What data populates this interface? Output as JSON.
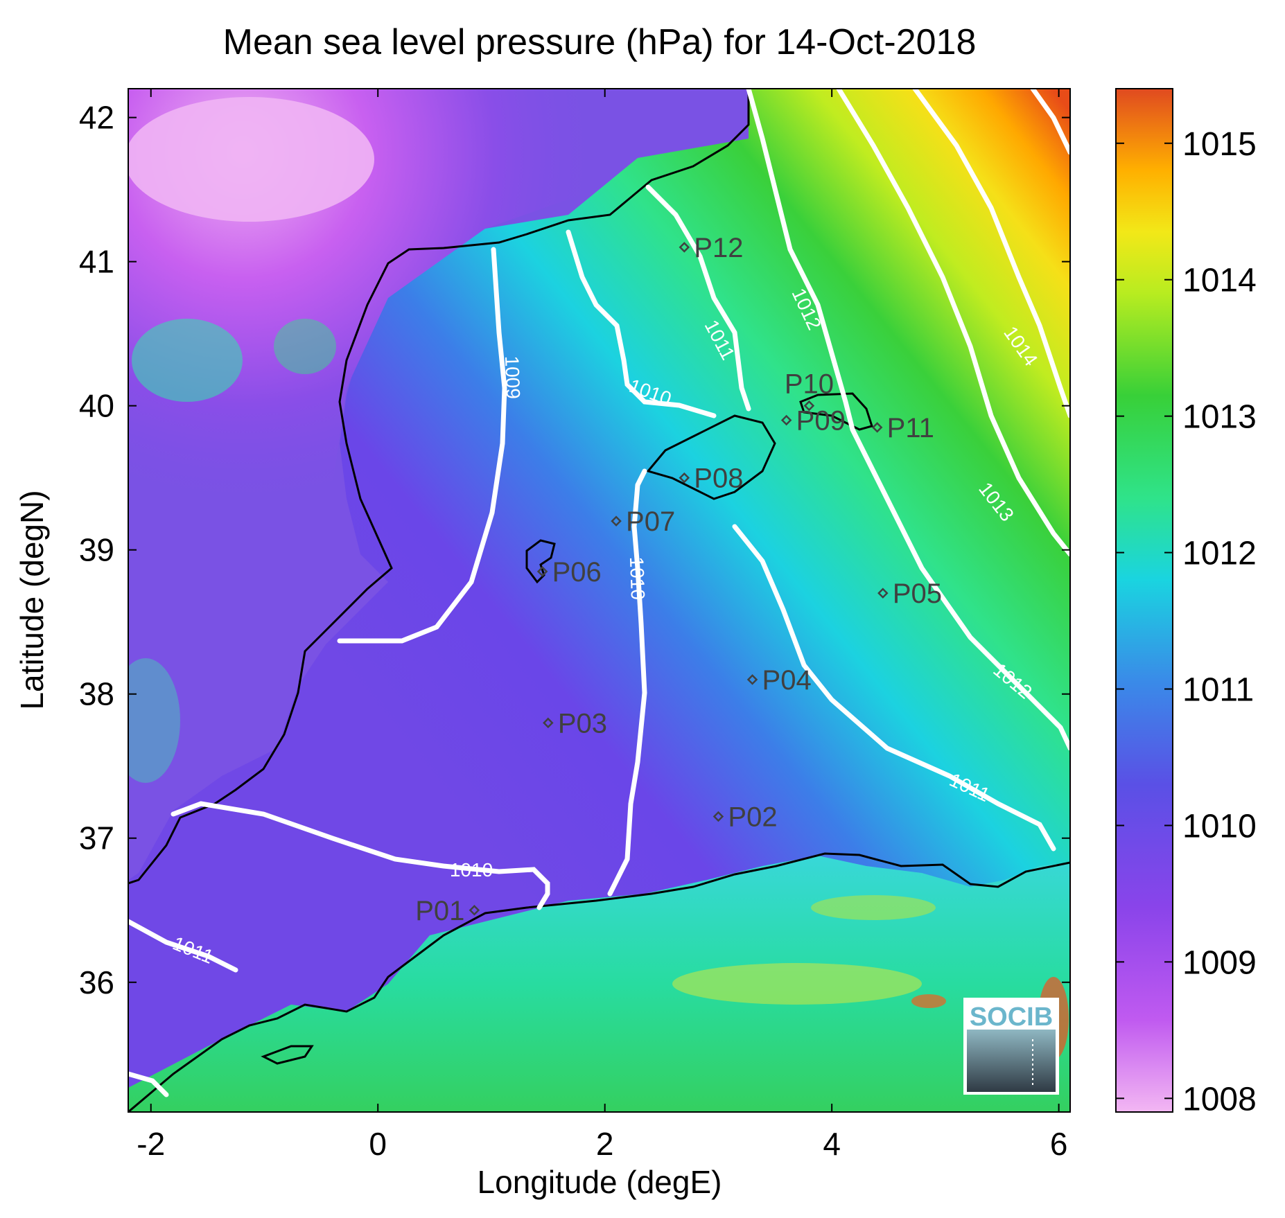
{
  "figure": {
    "title": "Mean sea level pressure (hPa) for 14-Oct-2018",
    "xlabel": "Longitude (degE)",
    "ylabel": "Latitude (degN)",
    "logo_text": "SOCIB"
  },
  "chart_data": {
    "type": "heatmap",
    "title": "Mean sea level pressure (hPa) for 14-Oct-2018",
    "xlabel": "Longitude (degE)",
    "ylabel": "Latitude (degN)",
    "xlim": [
      -2.2,
      6.1
    ],
    "ylim": [
      35.1,
      42.2
    ],
    "xticks": [
      -2,
      0,
      2,
      4,
      6
    ],
    "yticks": [
      36,
      37,
      38,
      39,
      40,
      41,
      42
    ],
    "grid": false,
    "colorbar": {
      "range": [
        1007.9,
        1015.4
      ],
      "ticks": [
        1008,
        1009,
        1010,
        1011,
        1012,
        1013,
        1014,
        1015
      ],
      "colormap": [
        "#f3b7f3",
        "#c05af0",
        "#7a40e8",
        "#3a7ee8",
        "#1ad4e0",
        "#2fe38a",
        "#38d038",
        "#b8ec20",
        "#f2e818",
        "#ffb000",
        "#f06010",
        "#e04a20"
      ]
    },
    "contour_levels": [
      {
        "level": 1009,
        "label": "1009"
      },
      {
        "level": 1010,
        "label": "1010"
      },
      {
        "level": 1011,
        "label": "1011"
      },
      {
        "level": 1012,
        "label": "1012"
      },
      {
        "level": 1013,
        "label": "1013"
      },
      {
        "level": 1014,
        "label": "1014"
      }
    ],
    "stations": [
      {
        "name": "P01",
        "lon": 0.85,
        "lat": 36.5
      },
      {
        "name": "P02",
        "lon": 3.0,
        "lat": 37.15
      },
      {
        "name": "P03",
        "lon": 1.5,
        "lat": 37.8
      },
      {
        "name": "P04",
        "lon": 3.3,
        "lat": 38.1
      },
      {
        "name": "P05",
        "lon": 4.45,
        "lat": 38.7
      },
      {
        "name": "P06",
        "lon": 1.45,
        "lat": 38.85
      },
      {
        "name": "P07",
        "lon": 2.1,
        "lat": 39.2
      },
      {
        "name": "P08",
        "lon": 2.7,
        "lat": 39.5
      },
      {
        "name": "P09",
        "lon": 3.6,
        "lat": 39.9
      },
      {
        "name": "P10",
        "lon": 3.8,
        "lat": 40.0
      },
      {
        "name": "P11",
        "lon": 4.4,
        "lat": 39.85
      },
      {
        "name": "P12",
        "lon": 2.7,
        "lat": 41.1
      }
    ]
  }
}
